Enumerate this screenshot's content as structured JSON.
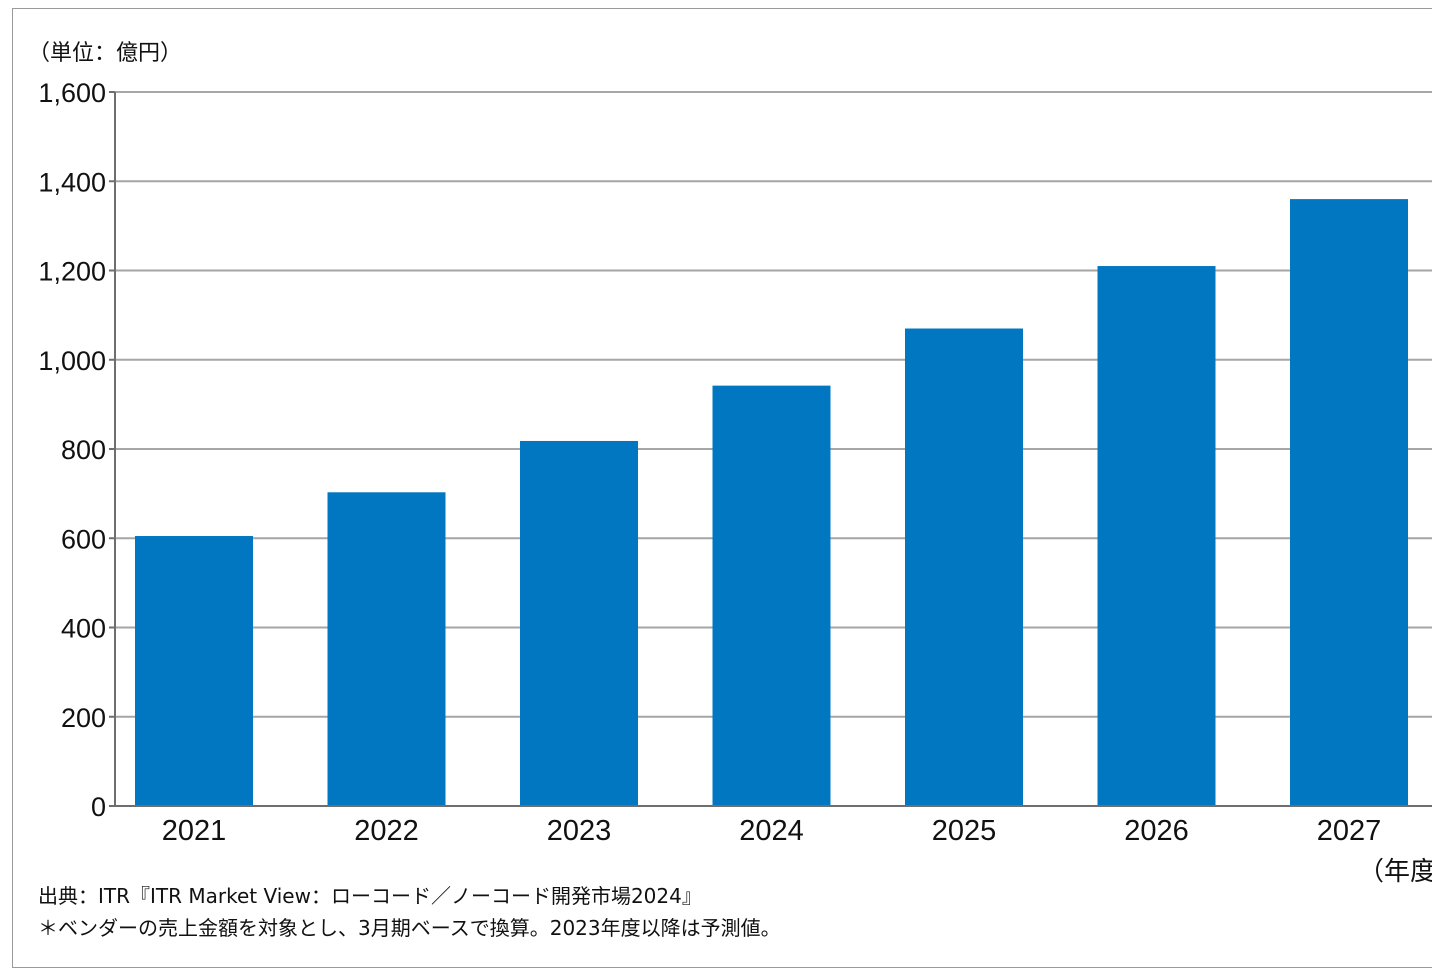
{
  "chart_data": {
    "type": "bar",
    "unit_label": "（単位：億円）",
    "xlabel": "（年度）",
    "categories": [
      "2021",
      "2022",
      "2023",
      "2024",
      "2025",
      "2026",
      "2027"
    ],
    "values": [
      605,
      703,
      818,
      942,
      1070,
      1210,
      1360
    ],
    "ylim": [
      0,
      1600
    ],
    "yticks": [
      0,
      200,
      400,
      600,
      800,
      1000,
      1200,
      1400,
      1600
    ],
    "ytick_labels": [
      "0",
      "200",
      "400",
      "600",
      "800",
      "1,000",
      "1,200",
      "1,400",
      "1,600"
    ],
    "grid": true,
    "bar_color": "#0077c0",
    "grid_color": "#a6a6a6"
  },
  "notes": {
    "source": "出典：ITR『ITR Market View：ローコード／ノーコード開発市場2024』",
    "footnote": "＊ベンダーの売上金額を対象とし、3月期ベースで換算。2023年度以降は予測値。"
  }
}
